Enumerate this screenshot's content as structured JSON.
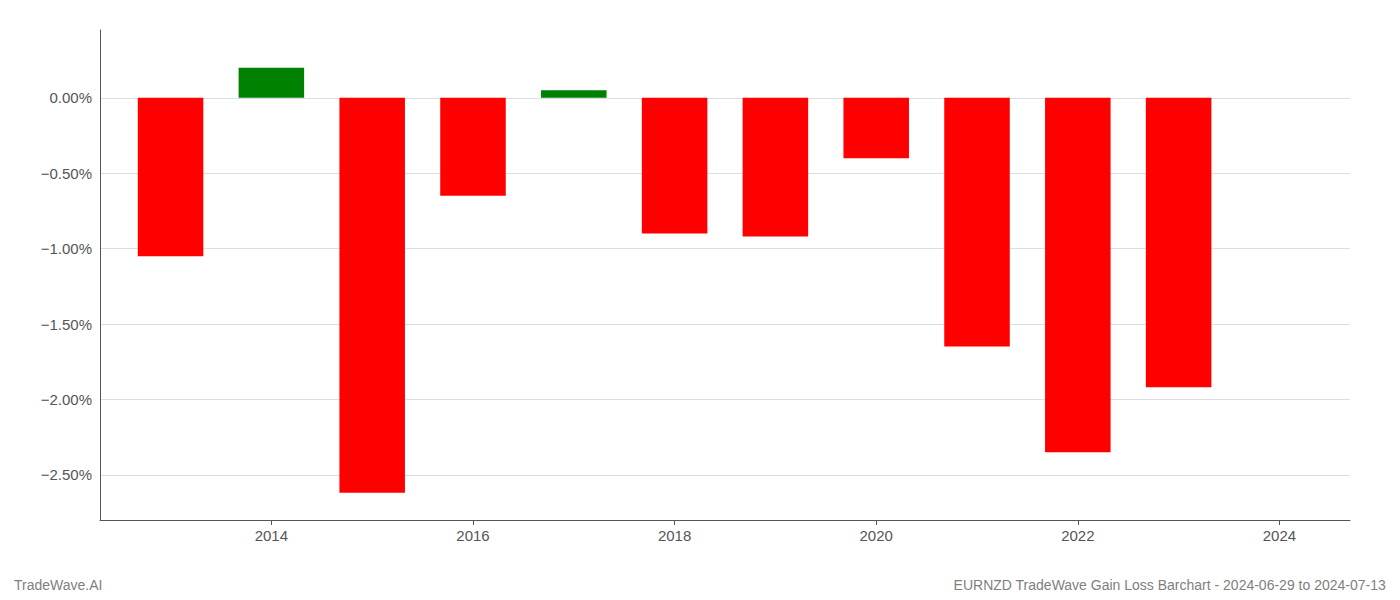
{
  "chart_data": {
    "type": "bar",
    "x": [
      2013,
      2014,
      2015,
      2016,
      2017,
      2018,
      2019,
      2020,
      2021,
      2022,
      2023
    ],
    "values": [
      -1.05,
      0.2,
      -2.62,
      -0.65,
      0.05,
      -0.9,
      -0.92,
      -0.4,
      -1.65,
      -2.35,
      -1.92
    ],
    "colors": [
      "#ff0000",
      "#008000",
      "#ff0000",
      "#ff0000",
      "#008000",
      "#ff0000",
      "#ff0000",
      "#ff0000",
      "#ff0000",
      "#ff0000",
      "#ff0000"
    ],
    "xlim": [
      2012.3,
      2024.7
    ],
    "xticks": [
      2014,
      2016,
      2018,
      2020,
      2022,
      2024
    ],
    "ylim": [
      -2.8,
      0.45
    ],
    "yticks": [
      {
        "value": 0.0,
        "label": "0.00%"
      },
      {
        "value": -0.5,
        "label": "−0.50%"
      },
      {
        "value": -1.0,
        "label": "−1.00%"
      },
      {
        "value": -1.5,
        "label": "−1.50%"
      },
      {
        "value": -2.0,
        "label": "−2.00%"
      },
      {
        "value": -2.5,
        "label": "−2.50%"
      }
    ],
    "grid": true,
    "annotations": [
      "TradeWave.AI",
      "EURNZD TradeWave Gain Loss Barchart - 2024-06-29 to 2024-07-13"
    ]
  }
}
